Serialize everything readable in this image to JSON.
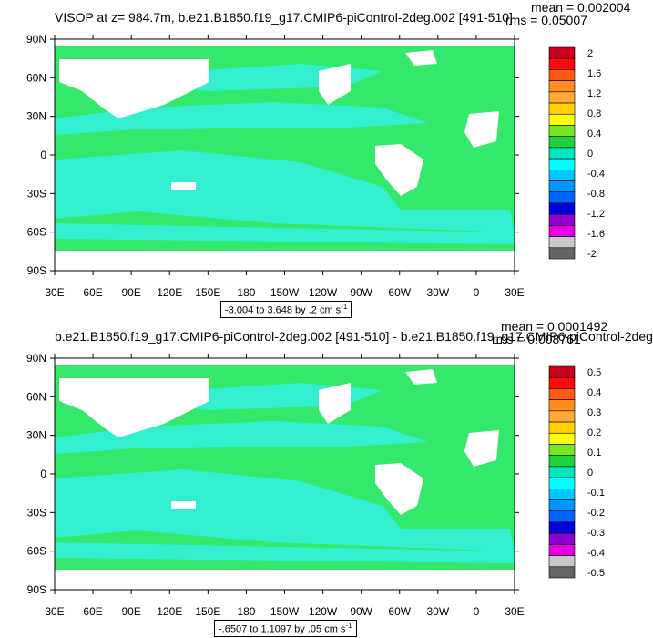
{
  "chart_data": [
    {
      "type": "heatmap",
      "title": "VISOP at z= 984.7m, b.e21.B1850.f19_g17.CMIP6-piControl-2deg.002 [491-510]",
      "mean_label": "mean = 0.002004",
      "rms_label": "rms = 0.05007",
      "range_label_main": "-3.004 to 3.648 by .2 cm s",
      "range_label_exp": "-1",
      "x_ticks": [
        "30E",
        "60E",
        "90E",
        "120E",
        "150E",
        "180",
        "150W",
        "120W",
        "90W",
        "60W",
        "30W",
        "0",
        "30E"
      ],
      "y_ticks": [
        "90N",
        "60N",
        "30N",
        "0",
        "30S",
        "60S",
        "90S"
      ],
      "colorbar_labels": [
        "2",
        "1.6",
        "1.2",
        "0.8",
        "0.4",
        "0",
        "-0.4",
        "-0.8",
        "-1.2",
        "-1.6",
        "-2"
      ],
      "colorbar_colors": [
        "#c8001e",
        "#ff0a0a",
        "#ff5a14",
        "#ff8c1e",
        "#ffaa32",
        "#ffd200",
        "#ffff00",
        "#78e61e",
        "#1ed23c",
        "#00e6be",
        "#00ffff",
        "#00c8ff",
        "#0096ff",
        "#0064ff",
        "#0000dc",
        "#8c00d2",
        "#e600e6",
        "#c8c8c8",
        "#646464"
      ]
    },
    {
      "type": "heatmap",
      "title": "b.e21.B1850.f19_g17.CMIP6-piControl-2deg.002 [491-510] - b.e21.B1850.f19_g17.CMIP6-piControl-2deg",
      "mean_label": "mean = 0.0001492",
      "rms_label": "rms = 0.008761",
      "range_label_main": "-.6507 to 1.1097 by .05 cm s",
      "range_label_exp": "-1",
      "x_ticks": [
        "30E",
        "60E",
        "90E",
        "120E",
        "150E",
        "180",
        "150W",
        "120W",
        "90W",
        "60W",
        "30W",
        "0",
        "30E"
      ],
      "y_ticks": [
        "90N",
        "60N",
        "30N",
        "0",
        "30S",
        "60S",
        "90S"
      ],
      "colorbar_labels": [
        "0.5",
        "0.4",
        "0.3",
        "0.2",
        "0.1",
        "0",
        "-0.1",
        "-0.2",
        "-0.3",
        "-0.4",
        "-0.5"
      ],
      "colorbar_colors": [
        "#c8001e",
        "#ff0a0a",
        "#ff5a14",
        "#ff8c1e",
        "#ffaa32",
        "#ffd200",
        "#ffff00",
        "#78e61e",
        "#1ed23c",
        "#00e6be",
        "#00ffff",
        "#00c8ff",
        "#0096ff",
        "#0064ff",
        "#0000dc",
        "#8c00d2",
        "#e600e6",
        "#c8c8c8",
        "#646464"
      ]
    }
  ],
  "colors": {
    "ocean_main": "#33e86a",
    "ocean_band": "#33f0e0",
    "land": "#ffffff"
  }
}
